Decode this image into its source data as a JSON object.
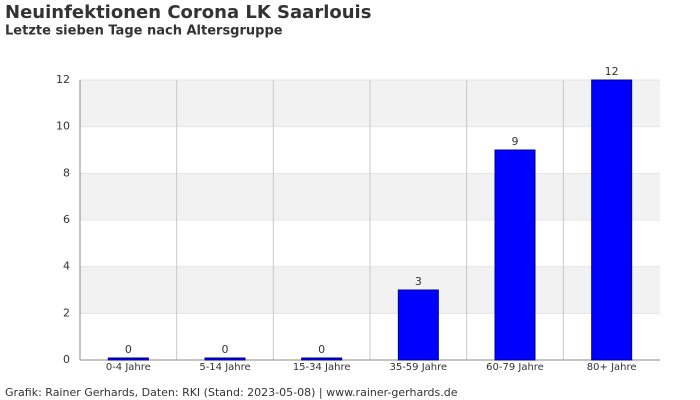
{
  "chart_data": {
    "type": "bar",
    "title": "Neuinfektionen Corona LK Saarlouis",
    "subtitle": "Letzte sieben Tage nach Altersgruppe",
    "categories": [
      "0-4 Jahre",
      "5-14 Jahre",
      "15-34 Jahre",
      "35-59 Jahre",
      "60-79 Jahre",
      "80+ Jahre"
    ],
    "values": [
      0,
      0,
      0,
      3,
      9,
      12
    ],
    "color": "#0000ff",
    "ylim": [
      0,
      12
    ],
    "yticks": [
      0,
      2,
      4,
      6,
      8,
      10,
      12
    ],
    "grid": true,
    "footer": "Grafik: Rainer Gerhards, Daten: RKI (Stand: 2023-05-08) | www.rainer-gerhards.de"
  }
}
